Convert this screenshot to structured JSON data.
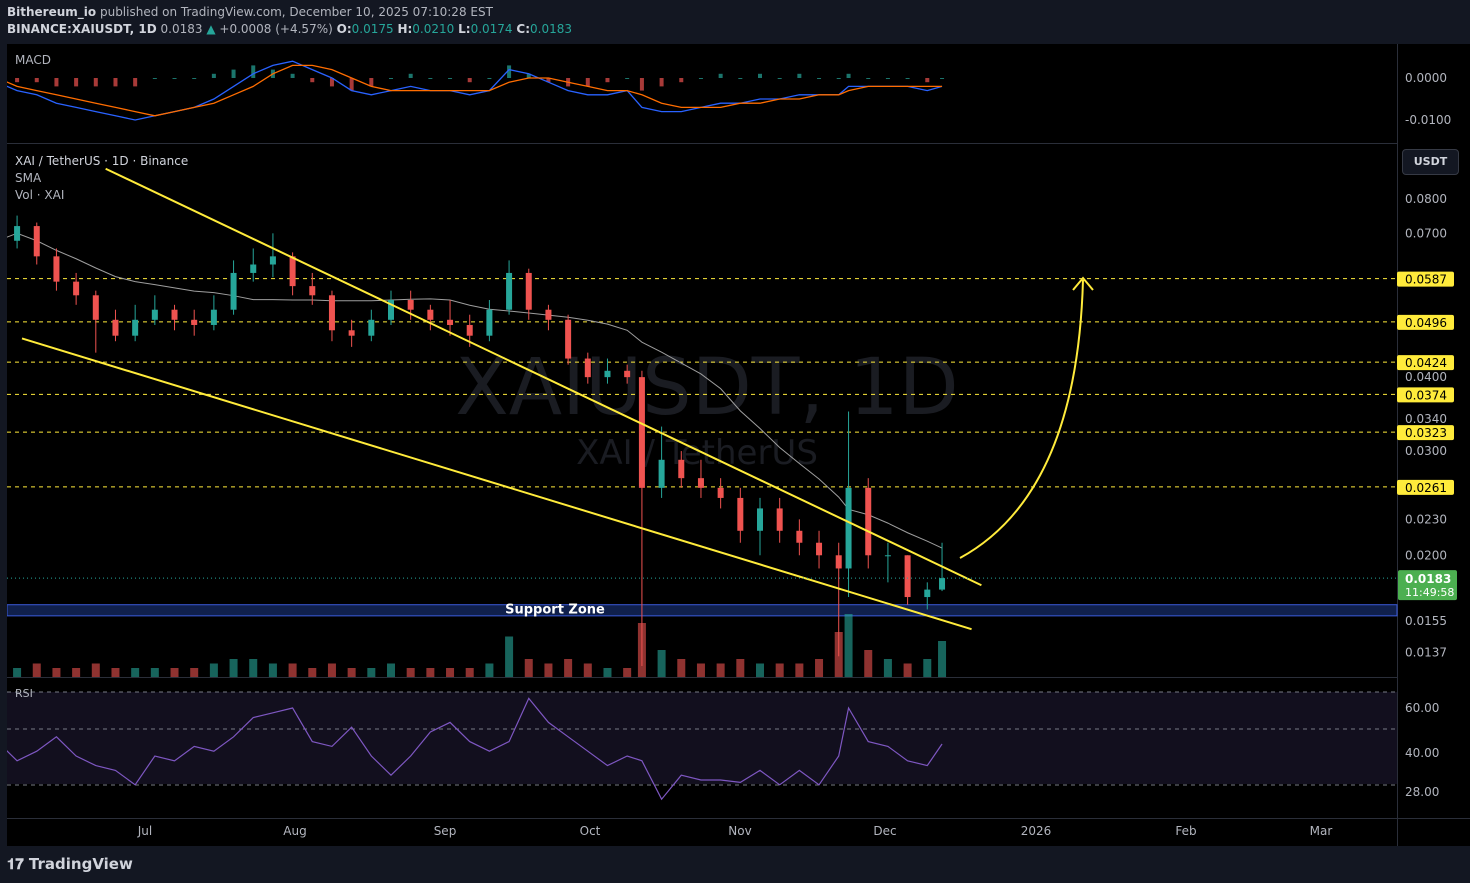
{
  "header": {
    "author": "Bithereum_io",
    "published": "published on TradingView.com, December 10, 2025 07:10:28 EST",
    "symbol": "BINANCE:XAIUSDT, 1D",
    "last": "0.0183",
    "change": "+0.0008 (+4.57%)",
    "o_label": "O:",
    "o": "0.0175",
    "h_label": "H:",
    "h": "0.0210",
    "l_label": "L:",
    "l": "0.0174",
    "c_label": "C:",
    "c": "0.0183"
  },
  "legend": {
    "pair": "XAI / TetherUS · 1D · Binance",
    "sma": "SMA",
    "vol": "Vol · XAI",
    "macd": "MACD",
    "rsi": "RSI"
  },
  "watermark": {
    "main": "XAIUSDT, 1D",
    "sub": "XAI / TetherUS"
  },
  "currency_button": "USDT",
  "annotation": {
    "support": "Support Zone"
  },
  "footer": {
    "brand": "TradingView"
  },
  "colors": {
    "up": "#26a69a",
    "down": "#ef5350",
    "trend": "#ffeb3b",
    "level": "#ffeb3b",
    "support": "#1e3a8a",
    "rsi": "#7e57c2",
    "macd": "#2962ff",
    "signal": "#ff6d00"
  },
  "chart_data": [
    {
      "type": "candlestick",
      "scale": "log",
      "ylim": [
        0.013,
        0.09
      ],
      "y_ticks": [
        "0.0800",
        "0.0700",
        "0.0400",
        "0.0340",
        "0.0300",
        "0.0230",
        "0.0200",
        "0.0155",
        "0.0137"
      ],
      "x_ticks": [
        "Jul",
        "Aug",
        "Sep",
        "Oct",
        "Nov",
        "Dec",
        "2026",
        "Feb",
        "Mar"
      ],
      "levels": [
        "0.0587",
        "0.0496",
        "0.0424",
        "0.0374",
        "0.0323",
        "0.0261"
      ],
      "last_price": "0.0183",
      "countdown": "11:49:58",
      "support_zone": [
        0.0158,
        0.0165
      ],
      "trendlines": [
        {
          "from": [
            "2025-06-23",
            0.09
          ],
          "to": [
            "2025-12-18",
            0.0178
          ]
        },
        {
          "from": [
            "2025-06-06",
            0.0465
          ],
          "to": [
            "2025-12-16",
            0.015
          ]
        }
      ],
      "candles": [
        [
          "2025-06-01",
          0.066,
          0.07,
          0.064,
          0.068
        ],
        [
          "2025-06-05",
          0.068,
          0.075,
          0.066,
          0.072
        ],
        [
          "2025-06-09",
          0.072,
          0.073,
          0.062,
          0.064
        ],
        [
          "2025-06-13",
          0.064,
          0.066,
          0.056,
          0.058
        ],
        [
          "2025-06-17",
          0.058,
          0.06,
          0.053,
          0.055
        ],
        [
          "2025-06-21",
          0.055,
          0.056,
          0.044,
          0.05
        ],
        [
          "2025-06-25",
          0.05,
          0.052,
          0.046,
          0.047
        ],
        [
          "2025-06-29",
          0.047,
          0.053,
          0.046,
          0.05
        ],
        [
          "2025-07-03",
          0.05,
          0.055,
          0.049,
          0.052
        ],
        [
          "2025-07-07",
          0.052,
          0.053,
          0.048,
          0.05
        ],
        [
          "2025-07-11",
          0.05,
          0.052,
          0.047,
          0.049
        ],
        [
          "2025-07-15",
          0.049,
          0.055,
          0.048,
          0.052
        ],
        [
          "2025-07-19",
          0.052,
          0.063,
          0.051,
          0.06
        ],
        [
          "2025-07-23",
          0.06,
          0.066,
          0.058,
          0.062
        ],
        [
          "2025-07-27",
          0.062,
          0.07,
          0.059,
          0.064
        ],
        [
          "2025-07-31",
          0.064,
          0.065,
          0.055,
          0.057
        ],
        [
          "2025-08-04",
          0.057,
          0.06,
          0.053,
          0.055
        ],
        [
          "2025-08-08",
          0.055,
          0.056,
          0.046,
          0.048
        ],
        [
          "2025-08-12",
          0.048,
          0.05,
          0.045,
          0.047
        ],
        [
          "2025-08-16",
          0.047,
          0.052,
          0.046,
          0.05
        ],
        [
          "2025-08-20",
          0.05,
          0.056,
          0.049,
          0.054
        ],
        [
          "2025-08-24",
          0.054,
          0.056,
          0.05,
          0.052
        ],
        [
          "2025-08-28",
          0.052,
          0.053,
          0.048,
          0.05
        ],
        [
          "2025-09-01",
          0.05,
          0.054,
          0.047,
          0.049
        ],
        [
          "2025-09-05",
          0.049,
          0.051,
          0.045,
          0.047
        ],
        [
          "2025-09-09",
          0.047,
          0.054,
          0.046,
          0.052
        ],
        [
          "2025-09-13",
          0.052,
          0.063,
          0.051,
          0.06
        ],
        [
          "2025-09-17",
          0.06,
          0.061,
          0.05,
          0.052
        ],
        [
          "2025-09-21",
          0.052,
          0.053,
          0.048,
          0.05
        ],
        [
          "2025-09-25",
          0.05,
          0.051,
          0.042,
          0.043
        ],
        [
          "2025-09-29",
          0.043,
          0.044,
          0.039,
          0.04
        ],
        [
          "2025-10-03",
          0.04,
          0.043,
          0.039,
          0.041
        ],
        [
          "2025-10-07",
          0.041,
          0.042,
          0.039,
          0.04
        ],
        [
          "2025-10-10",
          0.04,
          0.041,
          0.013,
          0.026
        ],
        [
          "2025-10-14",
          0.026,
          0.033,
          0.025,
          0.029
        ],
        [
          "2025-10-18",
          0.029,
          0.03,
          0.026,
          0.027
        ],
        [
          "2025-10-22",
          0.027,
          0.029,
          0.025,
          0.026
        ],
        [
          "2025-10-26",
          0.026,
          0.027,
          0.024,
          0.025
        ],
        [
          "2025-10-30",
          0.025,
          0.026,
          0.021,
          0.022
        ],
        [
          "2025-11-03",
          0.022,
          0.025,
          0.02,
          0.024
        ],
        [
          "2025-11-07",
          0.024,
          0.025,
          0.021,
          0.022
        ],
        [
          "2025-11-11",
          0.022,
          0.023,
          0.02,
          0.021
        ],
        [
          "2025-11-15",
          0.021,
          0.022,
          0.019,
          0.02
        ],
        [
          "2025-11-19",
          0.02,
          0.021,
          0.0135,
          0.019
        ],
        [
          "2025-11-21",
          0.019,
          0.035,
          0.017,
          0.026
        ],
        [
          "2025-11-25",
          0.026,
          0.027,
          0.019,
          0.02
        ],
        [
          "2025-11-29",
          0.02,
          0.021,
          0.018,
          0.02
        ],
        [
          "2025-12-03",
          0.02,
          0.02,
          0.0165,
          0.017
        ],
        [
          "2025-12-07",
          0.017,
          0.018,
          0.0162,
          0.0175
        ],
        [
          "2025-12-10",
          0.0175,
          0.021,
          0.0174,
          0.0183
        ]
      ],
      "volume": [
        2,
        2,
        3,
        2,
        2,
        3,
        2,
        2,
        2,
        2,
        2,
        3,
        4,
        4,
        3,
        3,
        2,
        3,
        2,
        2,
        3,
        2,
        2,
        2,
        2,
        3,
        9,
        4,
        3,
        4,
        3,
        2,
        2,
        12,
        6,
        4,
        3,
        3,
        4,
        3,
        3,
        3,
        4,
        10,
        14,
        6,
        4,
        3,
        4,
        8
      ]
    },
    {
      "type": "line",
      "name": "RSI",
      "y_ticks": [
        "60.00",
        "40.00",
        "28.00"
      ],
      "values": [
        46,
        38,
        42,
        48,
        40,
        36,
        34,
        28,
        40,
        38,
        44,
        42,
        48,
        56,
        58,
        60,
        46,
        44,
        52,
        40,
        32,
        40,
        50,
        54,
        46,
        42,
        46,
        64,
        54,
        48,
        42,
        36,
        40,
        38,
        22,
        32,
        30,
        30,
        29,
        34,
        28,
        34,
        28,
        40,
        60,
        46,
        44,
        38,
        36,
        45
      ]
    },
    {
      "type": "line",
      "name": "MACD",
      "y_ticks": [
        "0.0000",
        "-0.0100"
      ],
      "macd": [
        -0.001,
        -0.003,
        -0.004,
        -0.006,
        -0.007,
        -0.008,
        -0.009,
        -0.01,
        -0.009,
        -0.008,
        -0.007,
        -0.005,
        -0.002,
        0.001,
        0.003,
        0.004,
        0.002,
        0,
        -0.003,
        -0.004,
        -0.003,
        -0.002,
        -0.003,
        -0.003,
        -0.004,
        -0.003,
        0.002,
        0.001,
        -0.001,
        -0.003,
        -0.004,
        -0.004,
        -0.003,
        -0.007,
        -0.008,
        -0.008,
        -0.007,
        -0.006,
        -0.006,
        -0.005,
        -0.005,
        -0.004,
        -0.004,
        -0.004,
        -0.002,
        -0.002,
        -0.002,
        -0.002,
        -0.003,
        -0.002
      ],
      "signal": [
        0,
        -0.002,
        -0.003,
        -0.004,
        -0.005,
        -0.006,
        -0.007,
        -0.008,
        -0.009,
        -0.008,
        -0.007,
        -0.006,
        -0.004,
        -0.002,
        0.001,
        0.003,
        0.003,
        0.002,
        0,
        -0.002,
        -0.003,
        -0.003,
        -0.003,
        -0.003,
        -0.003,
        -0.003,
        -0.001,
        0,
        0,
        -0.001,
        -0.002,
        -0.003,
        -0.003,
        -0.004,
        -0.006,
        -0.007,
        -0.007,
        -0.007,
        -0.006,
        -0.006,
        -0.005,
        -0.005,
        -0.004,
        -0.004,
        -0.003,
        -0.002,
        -0.002,
        -0.002,
        -0.002,
        -0.002
      ]
    }
  ]
}
